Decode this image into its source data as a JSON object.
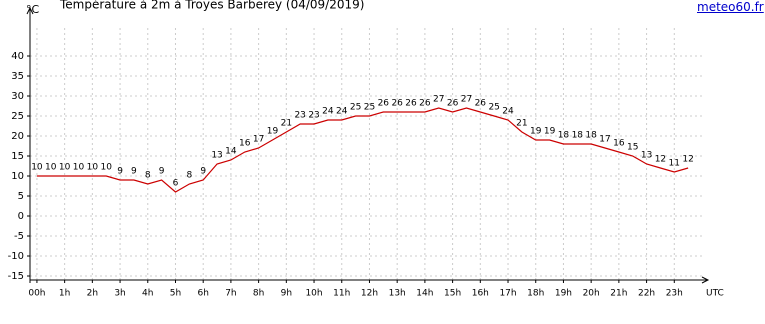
{
  "chart_data": {
    "type": "line",
    "title": "Température à 2m à Troyes Barberey (04/09/2019)",
    "source": "meteo60.fr",
    "y_label": "°C",
    "x_label": "UTC",
    "x": [
      0,
      0.5,
      1,
      1.5,
      2,
      2.5,
      3,
      3.5,
      4,
      4.5,
      5,
      5.5,
      6,
      6.5,
      7,
      7.5,
      8,
      8.5,
      9,
      9.5,
      10,
      10.5,
      11,
      11.5,
      12,
      12.5,
      13,
      13.5,
      14,
      14.5,
      15,
      15.5,
      16,
      16.5,
      17,
      17.5,
      18,
      18.5,
      19,
      19.5,
      20,
      20.5,
      21,
      21.5,
      22,
      22.5,
      23,
      23.5
    ],
    "series": [
      {
        "name": "Température",
        "color": "#cc0000",
        "values": [
          10,
          10,
          10,
          10,
          10,
          10,
          9,
          9,
          8,
          9,
          6,
          8,
          9,
          13,
          14,
          16,
          17,
          19,
          21,
          23,
          23,
          24,
          24,
          25,
          25,
          26,
          26,
          26,
          26,
          27,
          26,
          27,
          26,
          25,
          24,
          21,
          19,
          19,
          18,
          18,
          18,
          17,
          16,
          15,
          13,
          12,
          11,
          12
        ]
      }
    ],
    "xlim": [
      -0.25,
      24
    ],
    "xticks": [
      {
        "value": 0,
        "label": "00h"
      },
      {
        "value": 1,
        "label": "1h"
      },
      {
        "value": 2,
        "label": "2h"
      },
      {
        "value": 3,
        "label": "3h"
      },
      {
        "value": 4,
        "label": "4h"
      },
      {
        "value": 5,
        "label": "5h"
      },
      {
        "value": 6,
        "label": "6h"
      },
      {
        "value": 7,
        "label": "7h"
      },
      {
        "value": 8,
        "label": "8h"
      },
      {
        "value": 9,
        "label": "9h"
      },
      {
        "value": 10,
        "label": "10h"
      },
      {
        "value": 11,
        "label": "11h"
      },
      {
        "value": 12,
        "label": "12h"
      },
      {
        "value": 13,
        "label": "13h"
      },
      {
        "value": 14,
        "label": "14h"
      },
      {
        "value": 15,
        "label": "15h"
      },
      {
        "value": 16,
        "label": "16h"
      },
      {
        "value": 17,
        "label": "17h"
      },
      {
        "value": 18,
        "label": "18h"
      },
      {
        "value": 19,
        "label": "19h"
      },
      {
        "value": 20,
        "label": "20h"
      },
      {
        "value": 21,
        "label": "21h"
      },
      {
        "value": 22,
        "label": "22h"
      },
      {
        "value": 23,
        "label": "23h"
      }
    ],
    "ylim": [
      -16,
      52
    ],
    "yticks": [
      -15,
      -10,
      -5,
      0,
      5,
      10,
      15,
      20,
      25,
      30,
      35,
      40
    ],
    "grid": true
  }
}
